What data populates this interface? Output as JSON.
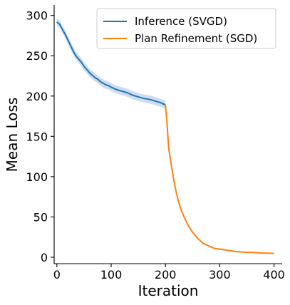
{
  "chart_data": {
    "type": "line",
    "xlabel": "Iteration",
    "ylabel": "Mean Loss",
    "xlim": [
      -5,
      415
    ],
    "ylim": [
      -8,
      313
    ],
    "xticks": [
      0,
      100,
      200,
      300,
      400
    ],
    "yticks": [
      0,
      50,
      100,
      150,
      200,
      250,
      300
    ],
    "legend_position": "top-right",
    "grid": false,
    "series": [
      {
        "name": "Inference (SVGD)",
        "color": "#1f77b4",
        "band_color": "#aec7e8",
        "x": [
          0,
          5,
          10,
          15,
          20,
          25,
          30,
          35,
          40,
          45,
          50,
          55,
          60,
          65,
          70,
          75,
          80,
          85,
          90,
          95,
          100,
          110,
          120,
          130,
          140,
          150,
          160,
          170,
          180,
          190,
          200
        ],
        "y": [
          292,
          289,
          283,
          277,
          270,
          263,
          256,
          250,
          246,
          242,
          237,
          233,
          229,
          226,
          223,
          221,
          218,
          216,
          214,
          213,
          211,
          208,
          206,
          204,
          201,
          199,
          197,
          196,
          194,
          192,
          189
        ],
        "band": 5
      },
      {
        "name": "Plan Refinement (SGD)",
        "color": "#ff7f0e",
        "x": [
          200,
          203,
          206,
          210,
          215,
          220,
          225,
          230,
          235,
          240,
          245,
          250,
          260,
          270,
          280,
          290,
          300,
          310,
          320,
          330,
          340,
          350,
          360,
          370,
          380,
          390,
          400
        ],
        "y": [
          189,
          165,
          135,
          118,
          97,
          80,
          67,
          57,
          49,
          42,
          36,
          31,
          23,
          17,
          14,
          11,
          10,
          9,
          8,
          7,
          6.5,
          6,
          6,
          5.5,
          5.2,
          5,
          4.8
        ]
      }
    ]
  }
}
